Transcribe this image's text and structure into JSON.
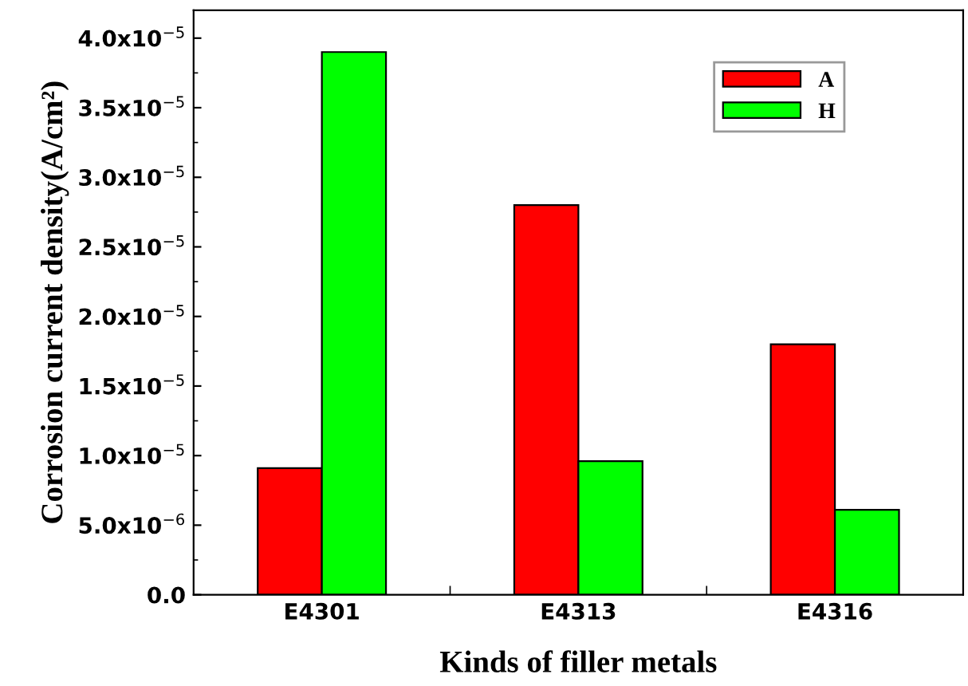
{
  "chart_data": {
    "type": "bar",
    "xlabel": "Kinds of filler metals",
    "ylabel": "Corrosion current density(A/cm²)",
    "categories": [
      "E4301",
      "E4313",
      "E4316"
    ],
    "series": [
      {
        "name": "A",
        "color": "#ff0000",
        "values": [
          9.1e-06,
          2.8e-05,
          1.8e-05
        ]
      },
      {
        "name": "H",
        "color": "#00ff00",
        "values": [
          3.9e-05,
          9.6e-06,
          6.1e-06
        ]
      }
    ],
    "ylim": [
      0,
      4.2e-05
    ],
    "yticks": [
      {
        "value": 0,
        "label": "0.0"
      },
      {
        "value": 5e-06,
        "label": "5.0x10$^{−6}$"
      },
      {
        "value": 1e-05,
        "label": "1.0x10$^{−5}$"
      },
      {
        "value": 1.5e-05,
        "label": "1.5x10$^{−5}$"
      },
      {
        "value": 2e-05,
        "label": "2.0x10$^{−5}$"
      },
      {
        "value": 2.5e-05,
        "label": "2.5x10$^{−5}$"
      },
      {
        "value": 3e-05,
        "label": "3.0x10$^{−5}$"
      },
      {
        "value": 3.5e-05,
        "label": "3.5x10$^{−5}$"
      },
      {
        "value": 4e-05,
        "label": "4.0x10$^{−5}$"
      }
    ],
    "grid": false,
    "legend": "top right"
  }
}
